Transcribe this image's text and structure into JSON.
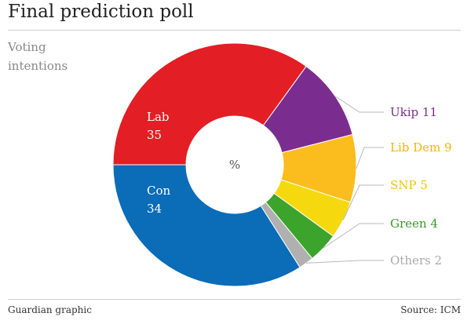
{
  "header": {
    "title": "Final prediction poll",
    "subtitle": "Voting intentions"
  },
  "footer": {
    "credit": "Guardian graphic",
    "source": "Source: ICM"
  },
  "chart_data": {
    "type": "pie",
    "variant": "donut",
    "title": "Final prediction poll",
    "subtitle": "Voting intentions",
    "center_label": "%",
    "categories": [
      "Lab",
      "Ukip",
      "Lib Dem",
      "SNP",
      "Green",
      "Others",
      "Con"
    ],
    "values": [
      35,
      11,
      9,
      5,
      4,
      2,
      34
    ],
    "colors": [
      "#e31e24",
      "#7b2d8f",
      "#fbbc1e",
      "#f5d90e",
      "#3ca42c",
      "#b0b0b0",
      "#0b6cb7"
    ],
    "label_colors": [
      "#ffffff",
      "#7b2d8f",
      "#f5b400",
      "#f2c30b",
      "#3a9a2a",
      "#aaaaaa",
      "#ffffff"
    ],
    "label_placement": [
      "inside",
      "outside",
      "outside",
      "outside",
      "outside",
      "outside",
      "inside"
    ],
    "legend": "none"
  }
}
